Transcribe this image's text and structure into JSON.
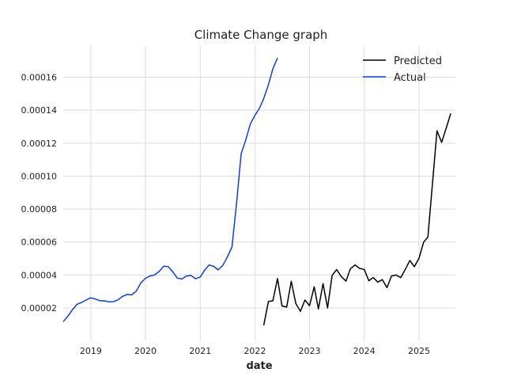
{
  "chart_data": {
    "type": "line",
    "title": "Climate Change graph",
    "xlabel": "date",
    "ylabel": "",
    "x_type": "date",
    "xlim": [
      "2018-07-01",
      "2025-09-01"
    ],
    "ylim": [
      3e-07,
      0.000179
    ],
    "grid": true,
    "legend_position": "top-right",
    "x_ticks": [
      "2019",
      "2020",
      "2021",
      "2022",
      "2023",
      "2024",
      "2025"
    ],
    "y_ticks": [
      "0.00002",
      "0.00004",
      "0.00006",
      "0.00008",
      "0.00010",
      "0.00012",
      "0.00014",
      "0.00016"
    ],
    "series": [
      {
        "name": "Predicted",
        "color": "#000000",
        "x": [
          "2022-03-01",
          "2022-04-01",
          "2022-05-01",
          "2022-06-01",
          "2022-07-01",
          "2022-08-01",
          "2022-09-01",
          "2022-10-01",
          "2022-11-01",
          "2022-12-01",
          "2023-01-01",
          "2023-02-01",
          "2023-03-01",
          "2023-04-01",
          "2023-05-01",
          "2023-06-01",
          "2023-07-01",
          "2023-08-01",
          "2023-09-01",
          "2023-10-01",
          "2023-11-01",
          "2023-12-01",
          "2024-01-01",
          "2024-02-01",
          "2024-03-01",
          "2024-04-01",
          "2024-05-01",
          "2024-06-01",
          "2024-07-01",
          "2024-08-01",
          "2024-09-01",
          "2024-10-01",
          "2024-11-01",
          "2024-12-01",
          "2025-01-01",
          "2025-02-01",
          "2025-03-01",
          "2025-04-01",
          "2025-05-01",
          "2025-06-01",
          "2025-07-01",
          "2025-08-01"
        ],
        "values": [
          9.5e-06,
          2.4e-05,
          2.43e-05,
          3.78e-05,
          2.12e-05,
          2.05e-05,
          3.62e-05,
          2.28e-05,
          1.8e-05,
          2.48e-05,
          2.14e-05,
          3.28e-05,
          1.94e-05,
          3.48e-05,
          2e-05,
          3.98e-05,
          4.33e-05,
          3.9e-05,
          3.63e-05,
          4.38e-05,
          4.61e-05,
          4.4e-05,
          4.34e-05,
          3.65e-05,
          3.84e-05,
          3.57e-05,
          3.72e-05,
          3.23e-05,
          3.94e-05,
          4e-05,
          3.84e-05,
          4.34e-05,
          4.88e-05,
          4.5e-05,
          5.02e-05,
          6e-05,
          6.3e-05,
          9.55e-05,
          0.0001275,
          0.0001205,
          0.000129,
          0.000138
        ]
      },
      {
        "name": "Actual",
        "color": "#0b3cf0",
        "x": [
          "2018-07-01",
          "2018-08-01",
          "2018-09-01",
          "2018-10-01",
          "2018-11-01",
          "2018-12-01",
          "2019-01-01",
          "2019-02-01",
          "2019-03-01",
          "2019-04-01",
          "2019-05-01",
          "2019-06-01",
          "2019-07-01",
          "2019-08-01",
          "2019-09-01",
          "2019-10-01",
          "2019-11-01",
          "2019-12-01",
          "2020-01-01",
          "2020-02-01",
          "2020-03-01",
          "2020-04-01",
          "2020-05-01",
          "2020-06-01",
          "2020-07-01",
          "2020-08-01",
          "2020-09-01",
          "2020-10-01",
          "2020-11-01",
          "2020-12-01",
          "2021-01-01",
          "2021-02-01",
          "2021-03-01",
          "2021-04-01",
          "2021-05-01",
          "2021-06-01",
          "2021-07-01",
          "2021-08-01",
          "2021-09-01",
          "2021-10-01",
          "2021-11-01",
          "2021-12-01",
          "2022-01-01",
          "2022-02-01",
          "2022-03-01",
          "2022-04-01",
          "2022-05-01",
          "2022-06-01",
          "2022-07-01"
        ],
        "values": [
          1.17e-05,
          1.5e-05,
          1.9e-05,
          2.22e-05,
          2.34e-05,
          2.48e-05,
          2.62e-05,
          2.54e-05,
          2.44e-05,
          2.43e-05,
          2.37e-05,
          2.38e-05,
          2.49e-05,
          2.7e-05,
          2.82e-05,
          2.79e-05,
          3.02e-05,
          3.52e-05,
          3.8e-05,
          3.94e-05,
          4e-05,
          4.21e-05,
          4.53e-05,
          4.51e-05,
          4.2e-05,
          3.81e-05,
          3.76e-05,
          3.94e-05,
          3.97e-05,
          3.77e-05,
          3.88e-05,
          4.32e-05,
          4.61e-05,
          4.52e-05,
          4.31e-05,
          4.59e-05,
          5.1e-05,
          5.7e-05,
          8.4e-05,
          0.0001135,
          0.000122,
          0.0001315,
          0.0001368,
          0.0001413,
          0.0001471,
          0.0001554,
          0.000165,
          0.0001717,
          null
        ]
      }
    ]
  }
}
